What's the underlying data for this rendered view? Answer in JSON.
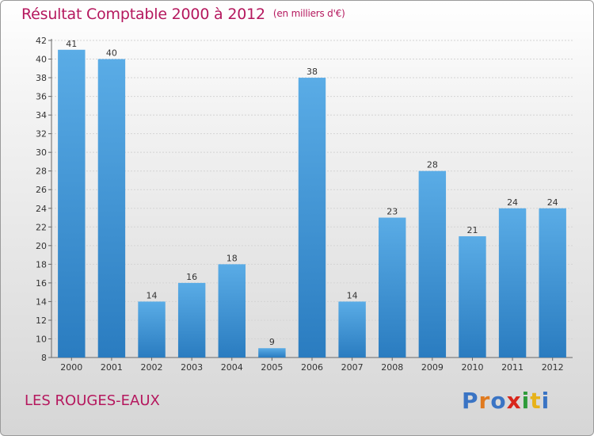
{
  "header": {
    "title": "Résultat Comptable 2000 à 2012",
    "subtitle": "(en milliers d'€)"
  },
  "footer": {
    "commune": "LES ROUGES-EAUX",
    "logo_text": "Proxiti",
    "logo_colors": [
      "#3a74c4",
      "#e07a1f",
      "#3a74c4",
      "#d8261c",
      "#2e9b3a",
      "#e7b21a",
      "#3a74c4"
    ]
  },
  "colors": {
    "bar_light": "#5aace6",
    "bar_dark": "#2a7cc0",
    "title": "#b5185e"
  },
  "chart_data": {
    "type": "bar",
    "title": "Résultat Comptable 2000 à 2012",
    "xlabel": "",
    "ylabel": "",
    "categories": [
      "2000",
      "2001",
      "2002",
      "2003",
      "2004",
      "2005",
      "2006",
      "2007",
      "2008",
      "2009",
      "2010",
      "2011",
      "2012"
    ],
    "values": [
      41,
      40,
      14,
      16,
      18,
      9,
      38,
      14,
      23,
      28,
      21,
      24,
      24
    ],
    "ylim": [
      8,
      42
    ],
    "yticks": [
      8,
      10,
      12,
      14,
      16,
      18,
      20,
      22,
      24,
      26,
      28,
      30,
      32,
      34,
      36,
      38,
      40,
      42
    ],
    "grid": true
  }
}
